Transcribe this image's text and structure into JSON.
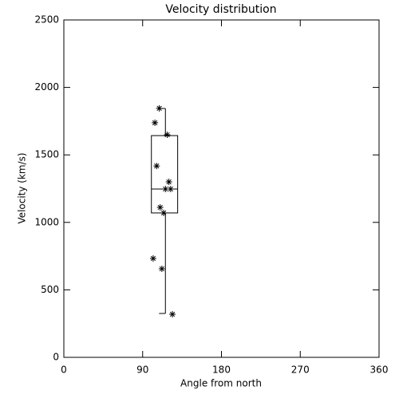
{
  "chart_data": {
    "type": "scatter",
    "title": "Velocity distribution",
    "x_label": "Angle from north",
    "y_label": "Velocity (km/s)",
    "x": [
      109,
      104,
      118,
      106,
      120,
      116,
      122,
      110,
      114,
      102,
      112,
      124
    ],
    "values": [
      1845,
      1738,
      1649,
      1418,
      1300,
      1247,
      1247,
      1111,
      1070,
      733,
      656,
      319
    ],
    "marker": "asterisk",
    "color": "#000000",
    "box": {
      "x": [
        100,
        130
      ],
      "q1": 1070,
      "median": 1247,
      "q3": 1643,
      "whisker_x": 116,
      "whisker_low": 325,
      "whisker_high": 1844
    },
    "xlim": [
      0,
      360
    ],
    "xticks": [
      0,
      90,
      180,
      270,
      360
    ],
    "ylim": [
      0,
      2500
    ],
    "yticks": [
      0,
      500,
      1000,
      1500,
      2000,
      2500
    ],
    "grid": false
  }
}
